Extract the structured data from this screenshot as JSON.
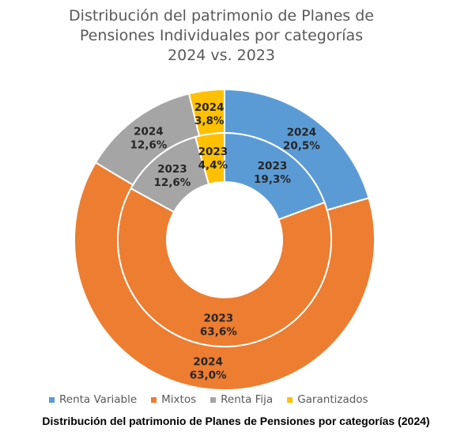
{
  "chart_title_lines": [
    "Distribución del patrimonio de Planes de",
    "Pensiones Individuales por categorías",
    "2024 vs. 2023"
  ],
  "caption": "Distribución del patrimonio de Planes de Pensiones por categorías (2024)",
  "chart_data": {
    "type": "donut",
    "categories": [
      "Renta Variable",
      "Mixtos",
      "Renta Fija",
      "Garantizados"
    ],
    "colors": [
      "#5B9BD5",
      "#ED7D31",
      "#A5A5A5",
      "#FFC000"
    ],
    "series": [
      {
        "name": "2024",
        "ring": "outer",
        "values": [
          20.5,
          63.0,
          12.6,
          3.8
        ],
        "labels": [
          "20,5%",
          "63,0%",
          "12,6%",
          "3,8%"
        ]
      },
      {
        "name": "2023",
        "ring": "inner",
        "values": [
          19.3,
          63.6,
          12.6,
          4.4
        ],
        "labels": [
          "19,3%",
          "63,6%",
          "12,6%",
          "4,4%"
        ]
      }
    ],
    "legend_position": "bottom"
  }
}
